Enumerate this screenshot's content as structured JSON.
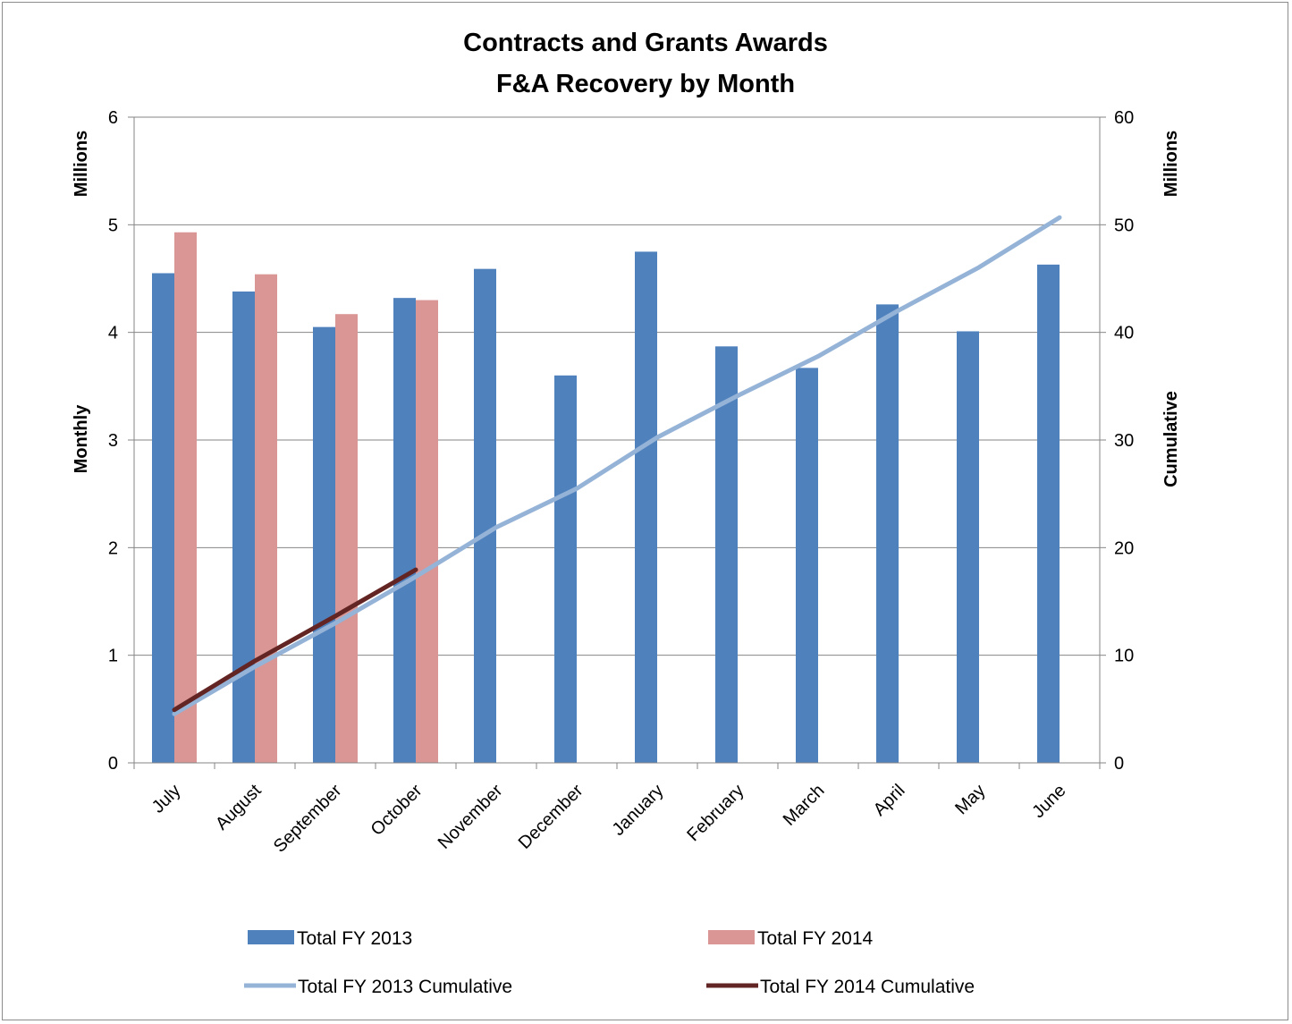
{
  "chart_data": {
    "type": "bar",
    "title": "Contracts and Grants Awards",
    "subtitle": "F&A Recovery by Month",
    "categories": [
      "July",
      "August",
      "September",
      "October",
      "November",
      "December",
      "January",
      "February",
      "March",
      "April",
      "May",
      "June"
    ],
    "y_left": {
      "label": "Monthly",
      "unit_label": "Millions",
      "ylim": [
        0,
        6
      ],
      "ticks": [
        "0",
        "1",
        "2",
        "3",
        "4",
        "5",
        "6"
      ]
    },
    "y_right": {
      "label": "Cumulative",
      "unit_label": "Millions",
      "ylim": [
        0,
        60
      ],
      "ticks": [
        "0",
        "10",
        "20",
        "30",
        "40",
        "50",
        "60"
      ]
    },
    "grid": true,
    "legend_position": "bottom",
    "series": [
      {
        "name": "Total FY 2013",
        "kind": "bar",
        "axis": "left",
        "color": "#4f81bd",
        "values": [
          4.55,
          4.38,
          4.05,
          4.32,
          4.59,
          3.6,
          4.75,
          3.87,
          3.67,
          4.26,
          4.01,
          4.63
        ]
      },
      {
        "name": "Total FY 2014",
        "kind": "bar",
        "axis": "left",
        "color": "#d99694",
        "values": [
          4.93,
          4.54,
          4.17,
          4.3,
          null,
          null,
          null,
          null,
          null,
          null,
          null,
          null
        ]
      },
      {
        "name": "Total FY 2013 Cumulative",
        "kind": "line",
        "axis": "right",
        "color": "#95b3d7",
        "values": [
          4.55,
          8.93,
          12.98,
          17.3,
          21.89,
          25.49,
          30.24,
          34.11,
          37.78,
          42.04,
          46.05,
          50.68
        ]
      },
      {
        "name": "Total FY 2014 Cumulative",
        "kind": "line",
        "axis": "right",
        "color": "#632523",
        "values": [
          4.93,
          9.47,
          13.64,
          17.94,
          null,
          null,
          null,
          null,
          null,
          null,
          null,
          null
        ]
      }
    ]
  }
}
